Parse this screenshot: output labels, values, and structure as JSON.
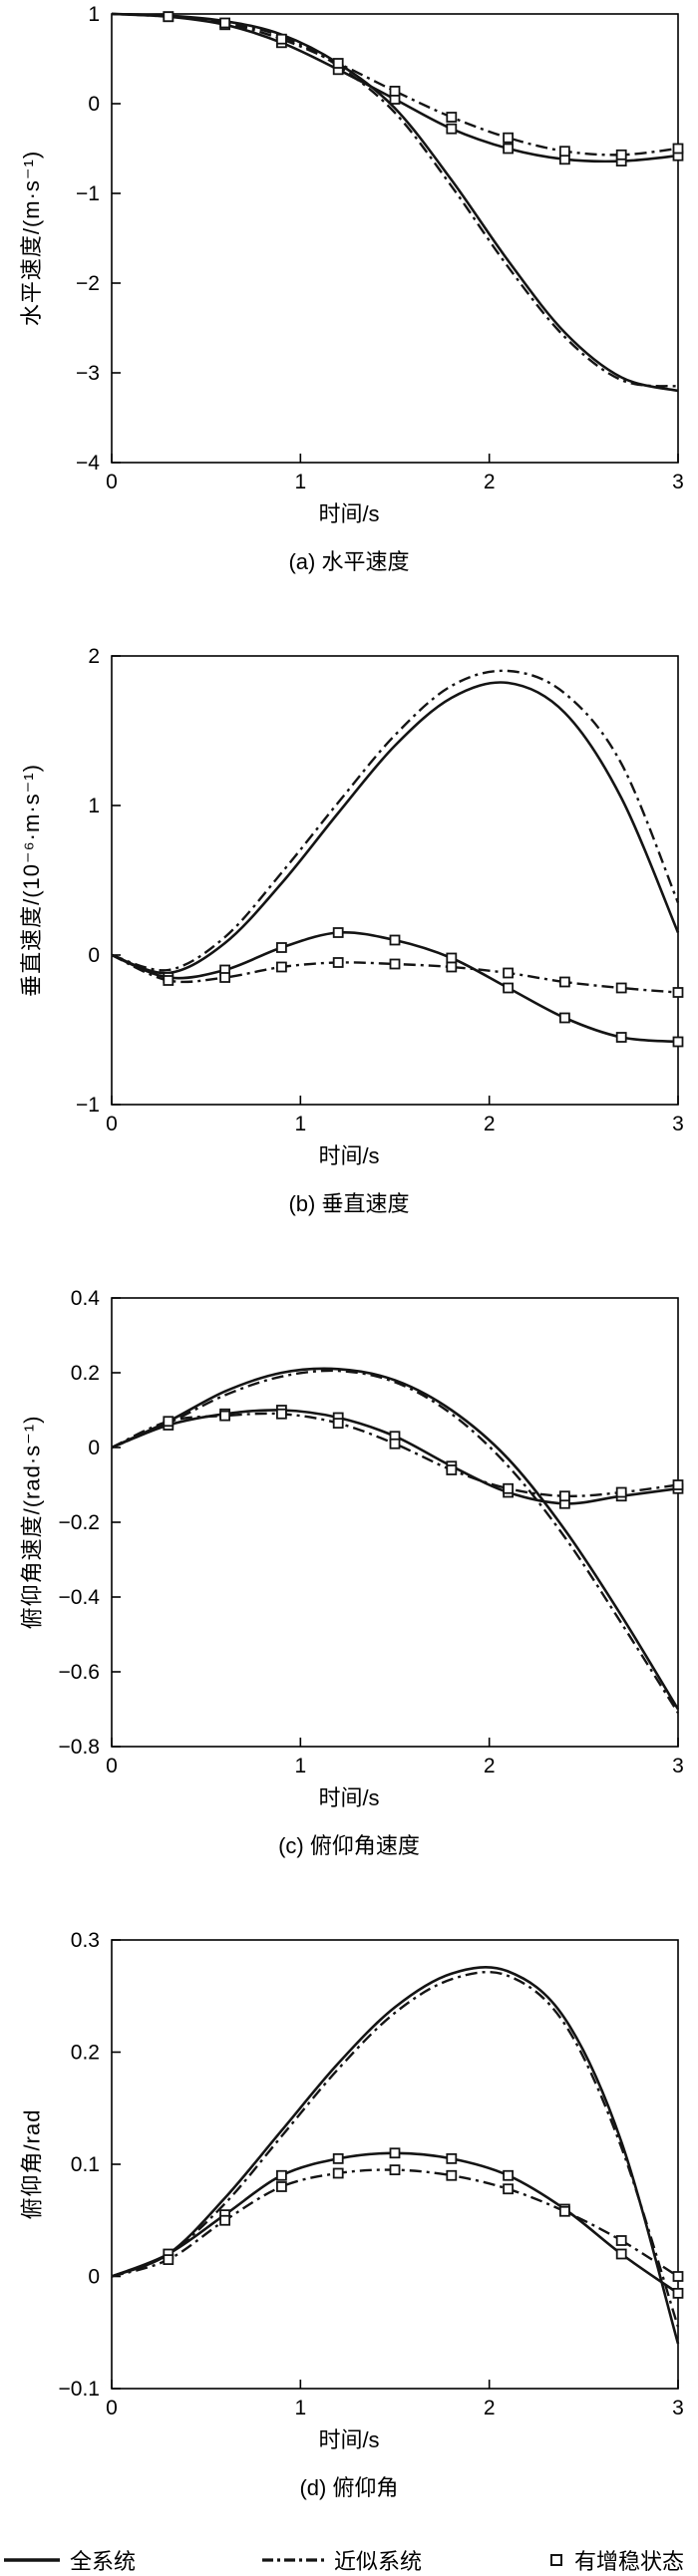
{
  "figure": {
    "bg": "#ffffff",
    "line_color": "#141414",
    "axis_color": "#000000"
  },
  "legend": {
    "items": [
      {
        "label": "全系统",
        "style": "solid"
      },
      {
        "label": "近似系统",
        "style": "dashdot"
      },
      {
        "label": "有增稳状态",
        "style": "square-marker"
      }
    ]
  },
  "chart_data": [
    {
      "id": "a",
      "type": "line",
      "caption": "(a) 水平速度",
      "xlabel": "时间/s",
      "ylabel": "水平速度/(m·s⁻¹)",
      "xlim": [
        0,
        3
      ],
      "ylim": [
        -4,
        1
      ],
      "xticks": [
        0,
        1,
        2,
        3
      ],
      "yticks": [
        1,
        0,
        -1,
        -2,
        -3,
        -4
      ],
      "x": [
        0,
        0.3,
        0.6,
        0.9,
        1.2,
        1.5,
        1.8,
        2.1,
        2.4,
        2.7,
        3
      ],
      "series": [
        {
          "name": "全系统",
          "style": "solid",
          "marker": false,
          "y": [
            1.0,
            0.98,
            0.92,
            0.77,
            0.45,
            -0.05,
            -0.85,
            -1.75,
            -2.55,
            -3.05,
            -3.2
          ]
        },
        {
          "name": "近似系统",
          "style": "dashdot",
          "marker": false,
          "y": [
            1.0,
            0.98,
            0.91,
            0.75,
            0.42,
            -0.1,
            -0.92,
            -1.82,
            -2.6,
            -3.08,
            -3.15
          ]
        },
        {
          "name": "有增稳状态",
          "style": "solid",
          "marker": true,
          "y": [
            1.0,
            0.97,
            0.88,
            0.68,
            0.38,
            0.05,
            -0.28,
            -0.5,
            -0.62,
            -0.64,
            -0.58
          ]
        },
        {
          "name": "有增稳状态",
          "style": "dashdot",
          "marker": true,
          "y": [
            1.0,
            0.97,
            0.9,
            0.72,
            0.45,
            0.14,
            -0.15,
            -0.38,
            -0.53,
            -0.57,
            -0.5
          ]
        }
      ]
    },
    {
      "id": "b",
      "type": "line",
      "caption": "(b) 垂直速度",
      "xlabel": "时间/s",
      "ylabel": "垂直速度/(10⁻⁶·m·s⁻¹)",
      "xlim": [
        0,
        3
      ],
      "ylim": [
        -1,
        2
      ],
      "xticks": [
        0,
        1,
        2,
        3
      ],
      "yticks": [
        2,
        1,
        0,
        -1
      ],
      "x": [
        0,
        0.3,
        0.6,
        0.9,
        1.2,
        1.5,
        1.8,
        2.1,
        2.4,
        2.7,
        3
      ],
      "series": [
        {
          "name": "全系统",
          "style": "solid",
          "marker": false,
          "y": [
            0,
            -0.12,
            0.08,
            0.48,
            0.95,
            1.4,
            1.72,
            1.82,
            1.62,
            1.05,
            0.15
          ]
        },
        {
          "name": "近似系统",
          "style": "dashdot",
          "marker": false,
          "y": [
            0,
            -0.1,
            0.12,
            0.55,
            1.02,
            1.47,
            1.8,
            1.9,
            1.75,
            1.28,
            0.35
          ]
        },
        {
          "name": "有增稳状态",
          "style": "solid",
          "marker": true,
          "y": [
            0,
            -0.15,
            -0.1,
            0.05,
            0.15,
            0.1,
            -0.02,
            -0.22,
            -0.42,
            -0.55,
            -0.58
          ]
        },
        {
          "name": "有增稳状态",
          "style": "dashdot",
          "marker": true,
          "y": [
            0,
            -0.17,
            -0.15,
            -0.08,
            -0.05,
            -0.06,
            -0.08,
            -0.12,
            -0.18,
            -0.22,
            -0.25
          ]
        }
      ]
    },
    {
      "id": "c",
      "type": "line",
      "caption": "(c) 俯仰角速度",
      "xlabel": "时间/s",
      "ylabel": "俯仰角速度/(rad·s⁻¹)",
      "xlim": [
        0,
        3
      ],
      "ylim": [
        -0.8,
        0.4
      ],
      "xticks": [
        0,
        1,
        2,
        3
      ],
      "yticks": [
        0.4,
        0.2,
        0,
        -0.2,
        -0.4,
        -0.6,
        -0.8
      ],
      "x": [
        0,
        0.3,
        0.6,
        0.9,
        1.2,
        1.5,
        1.8,
        2.1,
        2.4,
        2.7,
        3
      ],
      "series": [
        {
          "name": "全系统",
          "style": "solid",
          "marker": false,
          "y": [
            0,
            0.07,
            0.15,
            0.2,
            0.21,
            0.18,
            0.1,
            -0.03,
            -0.22,
            -0.45,
            -0.7
          ]
        },
        {
          "name": "近似系统",
          "style": "dashdot",
          "marker": false,
          "y": [
            0,
            0.065,
            0.14,
            0.19,
            0.205,
            0.175,
            0.09,
            -0.05,
            -0.24,
            -0.47,
            -0.71
          ]
        },
        {
          "name": "有增稳状态",
          "style": "solid",
          "marker": true,
          "y": [
            0,
            0.06,
            0.09,
            0.1,
            0.08,
            0.03,
            -0.05,
            -0.12,
            -0.15,
            -0.13,
            -0.11
          ]
        },
        {
          "name": "有增稳状态",
          "style": "dashdot",
          "marker": true,
          "y": [
            0,
            0.07,
            0.085,
            0.09,
            0.065,
            0.01,
            -0.06,
            -0.11,
            -0.13,
            -0.12,
            -0.1
          ]
        }
      ]
    },
    {
      "id": "d",
      "type": "line",
      "caption": "(d) 俯仰角",
      "xlabel": "时间/s",
      "ylabel": "俯仰角/rad",
      "xlim": [
        0,
        3
      ],
      "ylim": [
        -0.1,
        0.3
      ],
      "xticks": [
        0,
        1,
        2,
        3
      ],
      "yticks": [
        0.3,
        0.2,
        0.1,
        0,
        -0.1
      ],
      "x": [
        0,
        0.3,
        0.6,
        0.9,
        1.2,
        1.5,
        1.8,
        2.1,
        2.4,
        2.7,
        3
      ],
      "series": [
        {
          "name": "全系统",
          "style": "solid",
          "marker": false,
          "y": [
            0,
            0.02,
            0.07,
            0.13,
            0.19,
            0.24,
            0.27,
            0.272,
            0.23,
            0.12,
            -0.06
          ]
        },
        {
          "name": "近似系统",
          "style": "dashdot",
          "marker": false,
          "y": [
            0,
            0.02,
            0.065,
            0.125,
            0.185,
            0.235,
            0.265,
            0.268,
            0.225,
            0.115,
            -0.045
          ]
        },
        {
          "name": "有增稳状态",
          "style": "solid",
          "marker": true,
          "y": [
            0,
            0.02,
            0.055,
            0.09,
            0.105,
            0.11,
            0.105,
            0.09,
            0.06,
            0.02,
            -0.015
          ]
        },
        {
          "name": "有增稳状态",
          "style": "dashdot",
          "marker": true,
          "y": [
            0,
            0.015,
            0.05,
            0.08,
            0.092,
            0.095,
            0.09,
            0.078,
            0.058,
            0.032,
            0.0
          ]
        }
      ]
    }
  ]
}
